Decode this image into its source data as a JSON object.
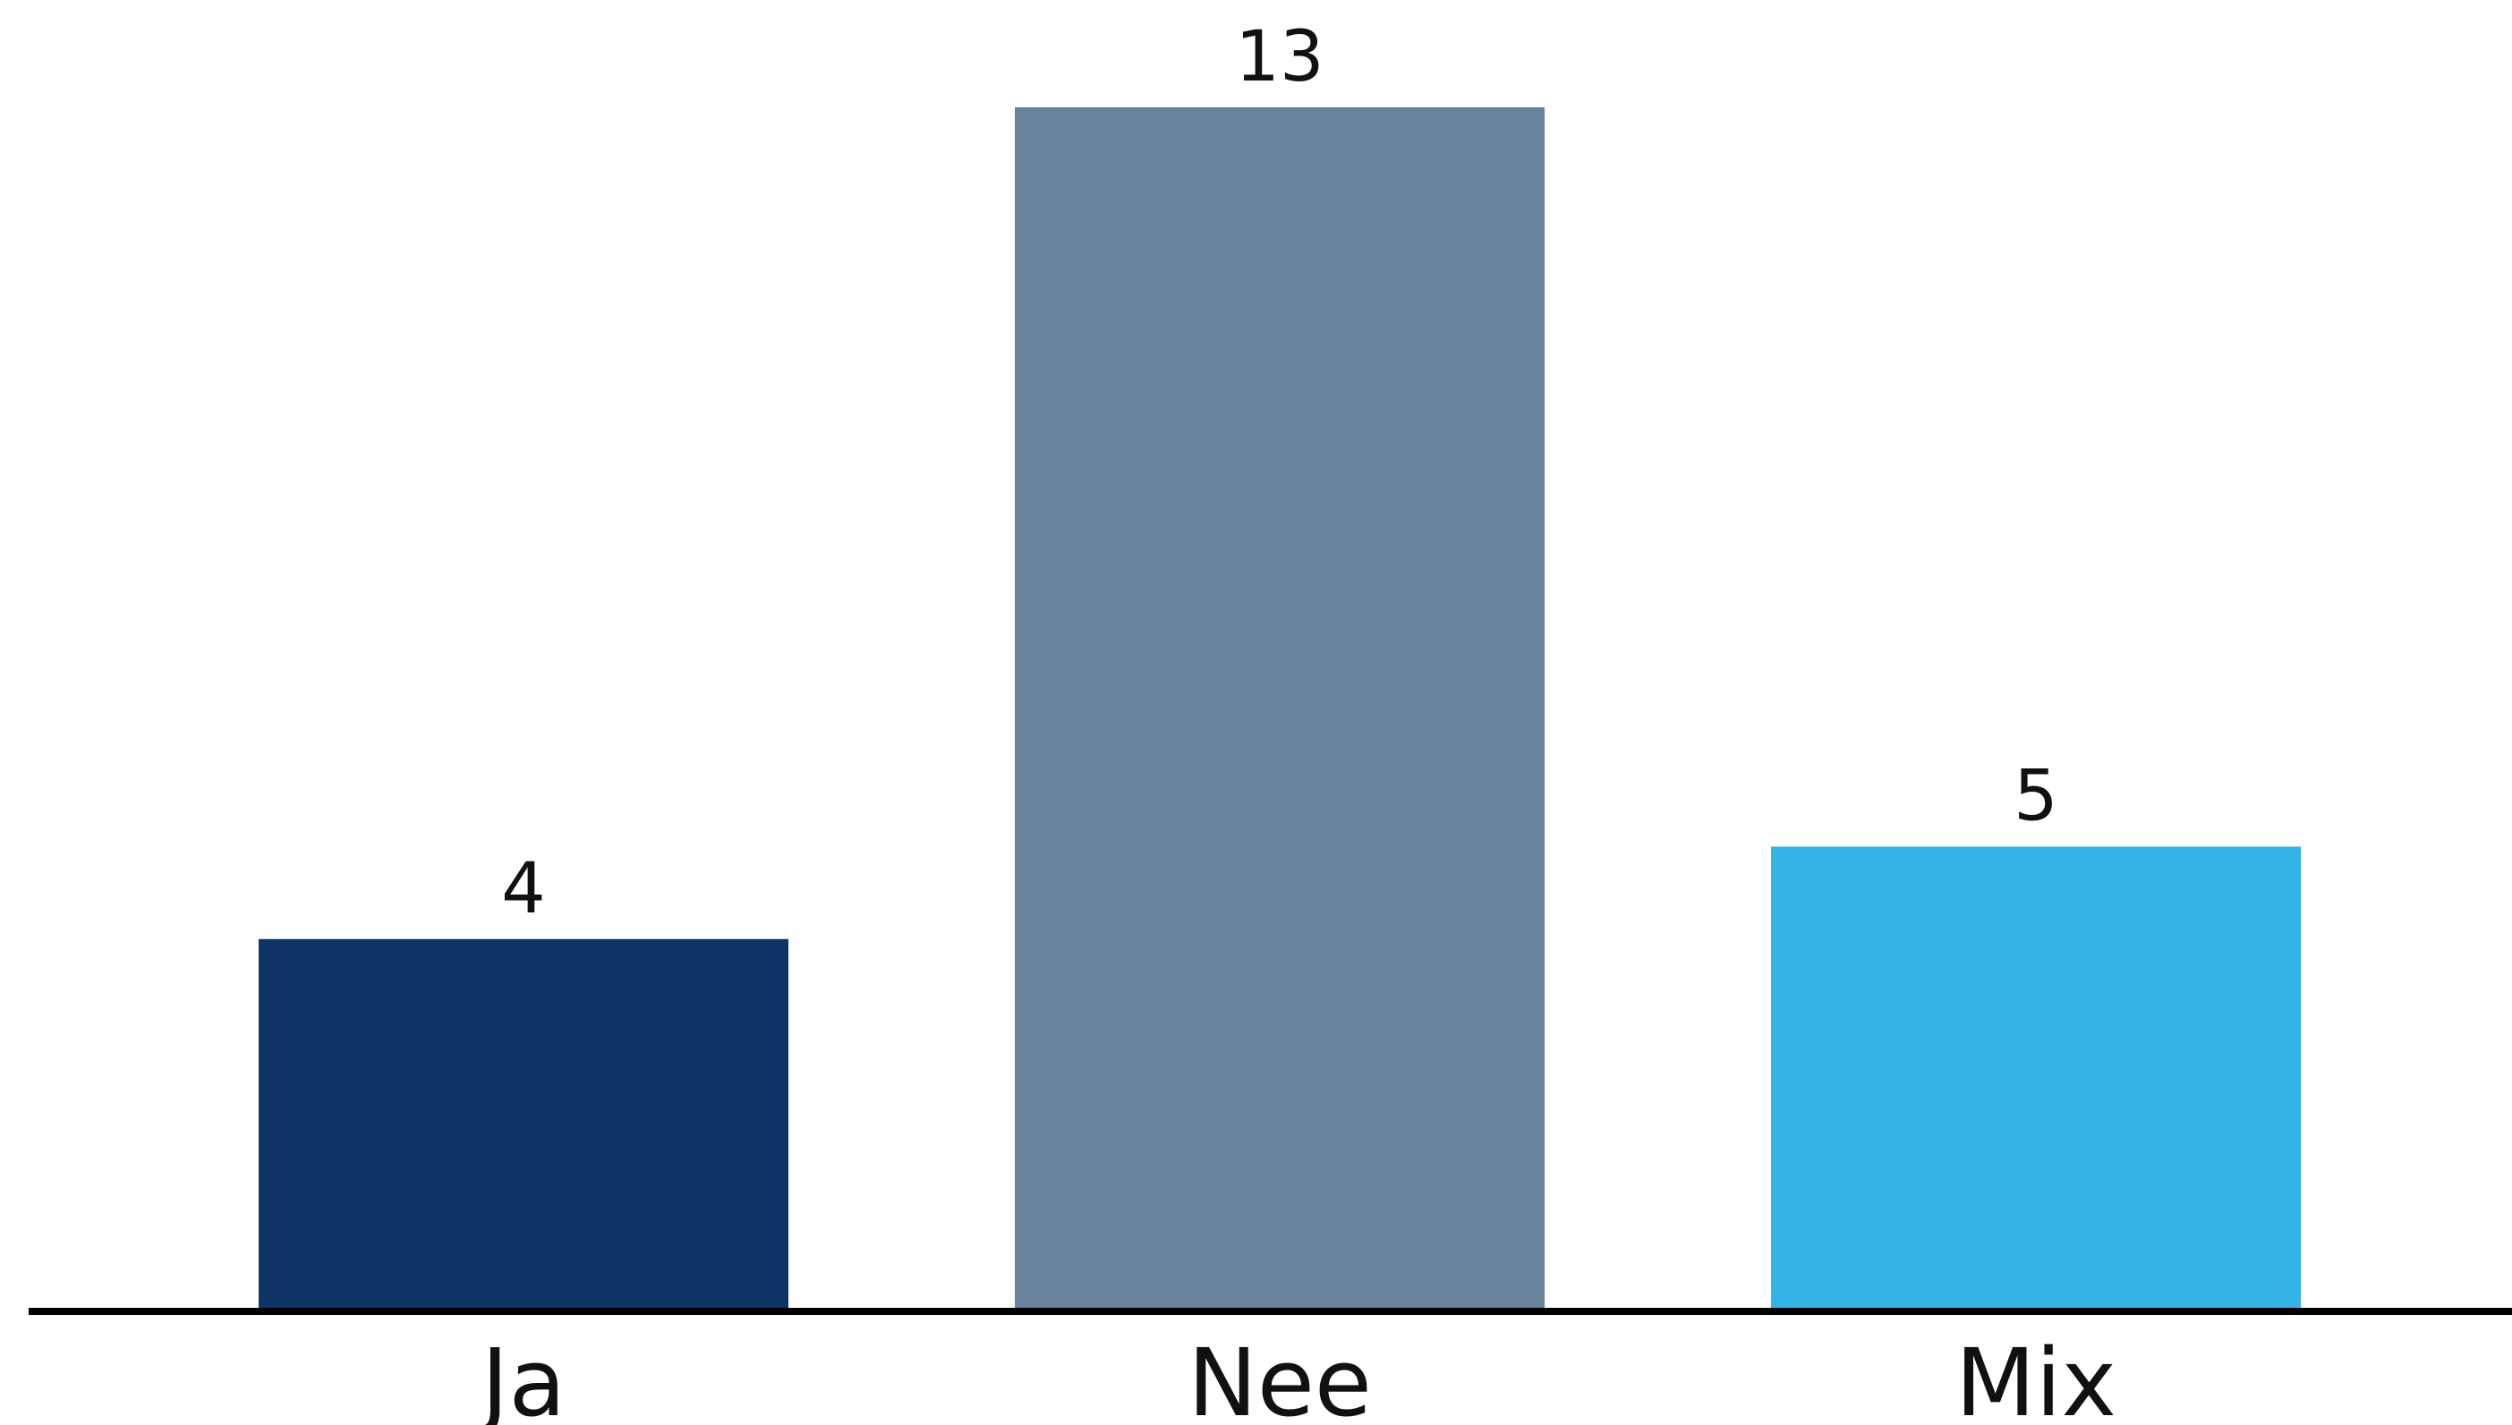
{
  "chart_data": {
    "type": "bar",
    "categories": [
      "Ja",
      "Nee",
      "Mix"
    ],
    "values": [
      4,
      13,
      5
    ],
    "colors": [
      "#0d3464",
      "#69829d",
      "#33b3e6"
    ],
    "axis_color": "#000000",
    "ylim": [
      0,
      13
    ],
    "grid": false,
    "legend": "none",
    "data_labels": true
  }
}
